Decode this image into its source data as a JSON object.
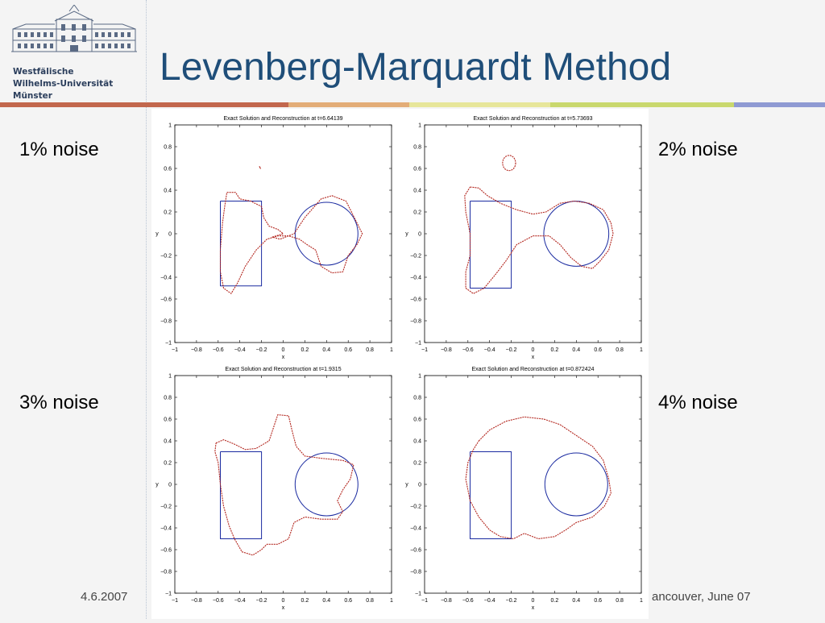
{
  "slide": {
    "title": "Levenberg-Marquardt Method",
    "university_lines": [
      "Westfälische",
      "Wilhelms-Universität",
      "Münster"
    ],
    "footer_date": "4.6.2007",
    "footer_right": "ancouver, June 07"
  },
  "labels": {
    "noise1": "1% noise",
    "noise2": "2% noise",
    "noise3": "3% noise",
    "noise4": "4% noise"
  },
  "colors": {
    "title": "#1f4e79",
    "stripe": [
      "#c2674d",
      "#e3ad78",
      "#e7e69a",
      "#c9d86e",
      "#8f9ad3"
    ],
    "exact": "#1a2aa0",
    "reconstruction": "#b3261e"
  },
  "chart_data": [
    {
      "type": "line",
      "title": "Exact Solution and Reconstruction at t=6.64139",
      "xlabel": "x",
      "ylabel": "y",
      "xlim": [
        -1,
        1
      ],
      "ylim": [
        -1,
        1
      ],
      "xticks": [
        "−1",
        "−0.8",
        "−0.6",
        "−0.4",
        "−0.2",
        "0",
        "0.2",
        "0.4",
        "0.6",
        "0.8",
        "1"
      ],
      "yticks": [
        "1",
        "0.8",
        "0.6",
        "0.4",
        "0.2",
        "0",
        "−0.2",
        "−0.4",
        "−0.6",
        "−0.8",
        "−1"
      ],
      "series": [
        {
          "role": "exact-rectangle",
          "points": [
            [
              -0.58,
              0.3
            ],
            [
              -0.2,
              0.3
            ],
            [
              -0.2,
              -0.48
            ],
            [
              -0.58,
              -0.48
            ],
            [
              -0.58,
              0.3
            ]
          ]
        },
        {
          "role": "exact-circle",
          "cx": 0.4,
          "cy": 0.0,
          "r": 0.29
        },
        {
          "role": "reconstruction",
          "points": [
            [
              -0.52,
              0.38
            ],
            [
              -0.44,
              0.38
            ],
            [
              -0.4,
              0.32
            ],
            [
              -0.3,
              0.3
            ],
            [
              -0.2,
              0.25
            ],
            [
              -0.18,
              0.15
            ],
            [
              -0.13,
              0.07
            ],
            [
              -0.05,
              0.04
            ],
            [
              0.0,
              0.0
            ],
            [
              -0.1,
              -0.03
            ],
            [
              -0.03,
              -0.05
            ],
            [
              0.1,
              0.0
            ],
            [
              0.2,
              0.15
            ],
            [
              0.35,
              0.32
            ],
            [
              0.45,
              0.35
            ],
            [
              0.58,
              0.3
            ],
            [
              0.68,
              0.1
            ],
            [
              0.73,
              0.0
            ],
            [
              0.68,
              -0.1
            ],
            [
              0.6,
              -0.2
            ],
            [
              0.55,
              -0.35
            ],
            [
              0.45,
              -0.36
            ],
            [
              0.35,
              -0.3
            ],
            [
              0.3,
              -0.15
            ],
            [
              0.22,
              -0.1
            ],
            [
              0.15,
              -0.05
            ],
            [
              0.05,
              -0.02
            ],
            [
              -0.05,
              -0.02
            ],
            [
              -0.15,
              -0.05
            ],
            [
              -0.25,
              -0.15
            ],
            [
              -0.35,
              -0.3
            ],
            [
              -0.42,
              -0.45
            ],
            [
              -0.48,
              -0.55
            ],
            [
              -0.55,
              -0.5
            ],
            [
              -0.58,
              -0.35
            ],
            [
              -0.58,
              -0.15
            ],
            [
              -0.56,
              0.1
            ],
            [
              -0.54,
              0.25
            ],
            [
              -0.52,
              0.38
            ]
          ]
        },
        {
          "role": "reconstruction-artifact",
          "points": [
            [
              -0.22,
              0.62
            ],
            [
              -0.21,
              0.6
            ],
            [
              -0.22,
              0.62
            ]
          ]
        }
      ]
    },
    {
      "type": "line",
      "title": "Exact Solution and Reconstruction at t=5.73693",
      "xlabel": "x",
      "ylabel": "y",
      "xlim": [
        -1,
        1
      ],
      "ylim": [
        -1,
        1
      ],
      "xticks": [
        "−1",
        "−0.8",
        "−0.6",
        "−0.4",
        "−0.2",
        "0",
        "0.2",
        "0.4",
        "0.6",
        "0.8",
        "1"
      ],
      "yticks": [
        "1",
        "0.8",
        "0.6",
        "0.4",
        "0.2",
        "0",
        "−0.2",
        "−0.4",
        "−0.6",
        "−0.8",
        "−1"
      ],
      "series": [
        {
          "role": "exact-rectangle",
          "points": [
            [
              -0.58,
              0.3
            ],
            [
              -0.2,
              0.3
            ],
            [
              -0.2,
              -0.5
            ],
            [
              -0.58,
              -0.5
            ],
            [
              -0.58,
              0.3
            ]
          ]
        },
        {
          "role": "exact-circle",
          "cx": 0.4,
          "cy": 0.0,
          "r": 0.3
        },
        {
          "role": "reconstruction",
          "points": [
            [
              -0.58,
              0.43
            ],
            [
              -0.5,
              0.42
            ],
            [
              -0.42,
              0.35
            ],
            [
              -0.3,
              0.28
            ],
            [
              -0.15,
              0.22
            ],
            [
              0.0,
              0.18
            ],
            [
              0.12,
              0.2
            ],
            [
              0.25,
              0.28
            ],
            [
              0.38,
              0.3
            ],
            [
              0.52,
              0.28
            ],
            [
              0.65,
              0.22
            ],
            [
              0.72,
              0.1
            ],
            [
              0.74,
              0.0
            ],
            [
              0.7,
              -0.15
            ],
            [
              0.62,
              -0.25
            ],
            [
              0.55,
              -0.32
            ],
            [
              0.45,
              -0.3
            ],
            [
              0.35,
              -0.22
            ],
            [
              0.25,
              -0.1
            ],
            [
              0.15,
              -0.02
            ],
            [
              0.0,
              -0.02
            ],
            [
              -0.15,
              -0.1
            ],
            [
              -0.25,
              -0.25
            ],
            [
              -0.35,
              -0.38
            ],
            [
              -0.45,
              -0.5
            ],
            [
              -0.55,
              -0.55
            ],
            [
              -0.62,
              -0.5
            ],
            [
              -0.62,
              -0.35
            ],
            [
              -0.58,
              -0.2
            ],
            [
              -0.58,
              0.0
            ],
            [
              -0.62,
              0.2
            ],
            [
              -0.63,
              0.35
            ],
            [
              -0.58,
              0.43
            ]
          ]
        },
        {
          "role": "reconstruction-island",
          "cx": -0.22,
          "cy": 0.65,
          "rx": 0.06,
          "ry": 0.07
        }
      ]
    },
    {
      "type": "line",
      "title": "Exact Solution and Reconstruction at t=1.9315",
      "xlabel": "x",
      "ylabel": "y",
      "xlim": [
        -1,
        1
      ],
      "ylim": [
        -1,
        1
      ],
      "xticks": [
        "−1",
        "−0.8",
        "−0.6",
        "−0.4",
        "−0.2",
        "0",
        "0.2",
        "0.4",
        "0.6",
        "0.8",
        "1"
      ],
      "yticks": [
        "1",
        "0.8",
        "0.6",
        "0.4",
        "0.2",
        "0",
        "−0.2",
        "−0.4",
        "−0.6",
        "−0.8",
        "−1"
      ],
      "series": [
        {
          "role": "exact-rectangle",
          "points": [
            [
              -0.58,
              0.3
            ],
            [
              -0.2,
              0.3
            ],
            [
              -0.2,
              -0.5
            ],
            [
              -0.58,
              -0.5
            ],
            [
              -0.58,
              0.3
            ]
          ]
        },
        {
          "role": "exact-circle",
          "cx": 0.4,
          "cy": 0.0,
          "r": 0.29
        },
        {
          "role": "reconstruction",
          "points": [
            [
              -0.62,
              0.38
            ],
            [
              -0.55,
              0.41
            ],
            [
              -0.45,
              0.37
            ],
            [
              -0.35,
              0.32
            ],
            [
              -0.25,
              0.33
            ],
            [
              -0.13,
              0.4
            ],
            [
              -0.08,
              0.55
            ],
            [
              -0.05,
              0.64
            ],
            [
              0.05,
              0.63
            ],
            [
              0.08,
              0.5
            ],
            [
              0.12,
              0.35
            ],
            [
              0.2,
              0.26
            ],
            [
              0.35,
              0.24
            ],
            [
              0.55,
              0.22
            ],
            [
              0.65,
              0.18
            ],
            [
              0.62,
              0.05
            ],
            [
              0.55,
              -0.05
            ],
            [
              0.5,
              -0.15
            ],
            [
              0.55,
              -0.25
            ],
            [
              0.5,
              -0.32
            ],
            [
              0.35,
              -0.32
            ],
            [
              0.2,
              -0.3
            ],
            [
              0.1,
              -0.35
            ],
            [
              0.05,
              -0.5
            ],
            [
              -0.05,
              -0.55
            ],
            [
              -0.15,
              -0.55
            ],
            [
              -0.2,
              -0.6
            ],
            [
              -0.28,
              -0.65
            ],
            [
              -0.38,
              -0.62
            ],
            [
              -0.45,
              -0.5
            ],
            [
              -0.5,
              -0.38
            ],
            [
              -0.55,
              -0.2
            ],
            [
              -0.58,
              0.0
            ],
            [
              -0.6,
              0.2
            ],
            [
              -0.63,
              0.3
            ],
            [
              -0.62,
              0.38
            ]
          ]
        }
      ]
    },
    {
      "type": "line",
      "title": "Exact Solution and Reconstruction at t=0.872424",
      "xlabel": "x",
      "ylabel": "y",
      "xlim": [
        -1,
        1
      ],
      "ylim": [
        -1,
        1
      ],
      "xticks": [
        "−1",
        "−0.8",
        "−0.6",
        "−0.4",
        "−0.2",
        "0",
        "0.2",
        "0.4",
        "0.6",
        "0.8",
        "1"
      ],
      "yticks": [
        "1",
        "0.8",
        "0.6",
        "0.4",
        "0.2",
        "0",
        "−0.2",
        "−0.4",
        "−0.6",
        "−0.8",
        "−1"
      ],
      "series": [
        {
          "role": "exact-rectangle",
          "points": [
            [
              -0.58,
              0.3
            ],
            [
              -0.2,
              0.3
            ],
            [
              -0.2,
              -0.5
            ],
            [
              -0.58,
              -0.5
            ],
            [
              -0.58,
              0.3
            ]
          ]
        },
        {
          "role": "exact-circle",
          "cx": 0.4,
          "cy": 0.0,
          "r": 0.29
        },
        {
          "role": "reconstruction",
          "points": [
            [
              -0.5,
              0.4
            ],
            [
              -0.4,
              0.5
            ],
            [
              -0.25,
              0.58
            ],
            [
              -0.08,
              0.62
            ],
            [
              0.1,
              0.6
            ],
            [
              0.25,
              0.55
            ],
            [
              0.4,
              0.45
            ],
            [
              0.55,
              0.35
            ],
            [
              0.65,
              0.22
            ],
            [
              0.7,
              0.05
            ],
            [
              0.72,
              -0.08
            ],
            [
              0.66,
              -0.2
            ],
            [
              0.55,
              -0.3
            ],
            [
              0.4,
              -0.35
            ],
            [
              0.3,
              -0.42
            ],
            [
              0.2,
              -0.48
            ],
            [
              0.05,
              -0.5
            ],
            [
              -0.08,
              -0.45
            ],
            [
              -0.18,
              -0.5
            ],
            [
              -0.3,
              -0.48
            ],
            [
              -0.4,
              -0.42
            ],
            [
              -0.5,
              -0.3
            ],
            [
              -0.58,
              -0.15
            ],
            [
              -0.62,
              0.05
            ],
            [
              -0.6,
              0.2
            ],
            [
              -0.55,
              0.32
            ],
            [
              -0.5,
              0.4
            ]
          ]
        }
      ]
    }
  ]
}
